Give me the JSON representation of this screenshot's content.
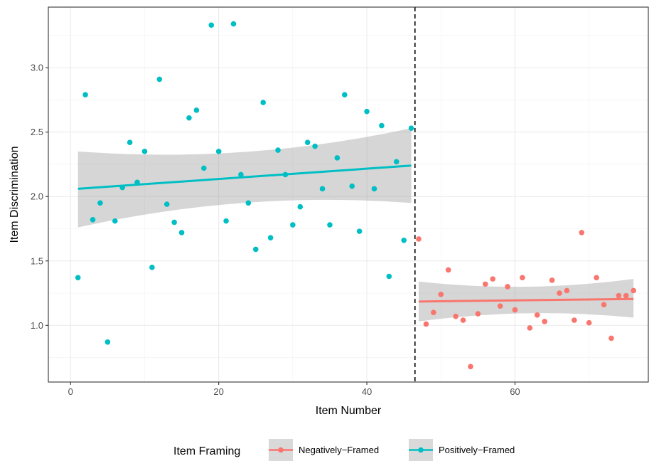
{
  "chart_data": {
    "type": "scatter",
    "xlabel": "Item Number",
    "ylabel": "Item Discrimination",
    "xlim": [
      -3.0,
      78.0
    ],
    "ylim": [
      0.56,
      3.47
    ],
    "x_ticks": [
      0,
      20,
      40,
      60
    ],
    "y_ticks": [
      1.0,
      1.5,
      2.0,
      2.5,
      3.0
    ],
    "x_tick_labels": [
      "0",
      "20",
      "40",
      "60"
    ],
    "y_tick_labels": [
      "1.0",
      "1.5",
      "2.0",
      "2.5",
      "3.0"
    ],
    "grid": true,
    "vline": {
      "x": 46.5,
      "style": "dashed"
    },
    "legend": {
      "title": "Item Framing",
      "position": "bottom",
      "entries": [
        "Negatively−Framed",
        "Positively−Framed"
      ]
    },
    "series": [
      {
        "name": "Positively−Framed",
        "color": "#00BFC4",
        "points": [
          [
            1,
            1.37
          ],
          [
            2,
            2.79
          ],
          [
            3,
            1.82
          ],
          [
            4,
            1.95
          ],
          [
            5,
            0.87
          ],
          [
            6,
            1.81
          ],
          [
            7,
            2.07
          ],
          [
            8,
            2.42
          ],
          [
            9,
            2.11
          ],
          [
            10,
            2.35
          ],
          [
            11,
            1.45
          ],
          [
            12,
            2.91
          ],
          [
            13,
            1.94
          ],
          [
            14,
            1.8
          ],
          [
            15,
            1.72
          ],
          [
            16,
            2.61
          ],
          [
            17,
            2.67
          ],
          [
            18,
            2.22
          ],
          [
            19,
            3.33
          ],
          [
            20,
            2.35
          ],
          [
            21,
            1.81
          ],
          [
            22,
            3.34
          ],
          [
            23,
            2.17
          ],
          [
            24,
            1.95
          ],
          [
            25,
            1.59
          ],
          [
            26,
            2.73
          ],
          [
            27,
            1.68
          ],
          [
            28,
            2.36
          ],
          [
            29,
            2.17
          ],
          [
            30,
            1.78
          ],
          [
            31,
            1.92
          ],
          [
            32,
            2.42
          ],
          [
            33,
            2.39
          ],
          [
            34,
            2.06
          ],
          [
            35,
            1.78
          ],
          [
            36,
            2.3
          ],
          [
            37,
            2.79
          ],
          [
            38,
            2.08
          ],
          [
            39,
            1.73
          ],
          [
            40,
            2.66
          ],
          [
            41,
            2.06
          ],
          [
            42,
            2.55
          ],
          [
            43,
            1.38
          ],
          [
            44,
            2.27
          ],
          [
            45,
            1.66
          ],
          [
            46,
            2.53
          ]
        ],
        "trend": {
          "x": [
            1,
            46
          ],
          "y": [
            2.06,
            2.24
          ],
          "ci_lower": [
            1.76,
            1.95
          ],
          "ci_upper": [
            2.35,
            2.53
          ]
        }
      },
      {
        "name": "Negatively−Framed",
        "color": "#F8766D",
        "points": [
          [
            47,
            1.67
          ],
          [
            48,
            1.01
          ],
          [
            49,
            1.1
          ],
          [
            50,
            1.24
          ],
          [
            51,
            1.43
          ],
          [
            52,
            1.07
          ],
          [
            53,
            1.04
          ],
          [
            54,
            0.68
          ],
          [
            55,
            1.09
          ],
          [
            56,
            1.32
          ],
          [
            57,
            1.36
          ],
          [
            58,
            1.15
          ],
          [
            59,
            1.3
          ],
          [
            60,
            1.12
          ],
          [
            61,
            1.37
          ],
          [
            62,
            0.98
          ],
          [
            63,
            1.08
          ],
          [
            64,
            1.03
          ],
          [
            65,
            1.35
          ],
          [
            66,
            1.25
          ],
          [
            67,
            1.27
          ],
          [
            68,
            1.04
          ],
          [
            69,
            1.72
          ],
          [
            70,
            1.02
          ],
          [
            71,
            1.37
          ],
          [
            72,
            1.16
          ],
          [
            73,
            0.9
          ],
          [
            74,
            1.23
          ],
          [
            75,
            1.23
          ],
          [
            76,
            1.27
          ]
        ],
        "trend": {
          "x": [
            47,
            76
          ],
          "y": [
            1.185,
            1.205
          ],
          "ci_lower": [
            1.03,
            1.06
          ],
          "ci_upper": [
            1.34,
            1.36
          ]
        }
      }
    ]
  }
}
